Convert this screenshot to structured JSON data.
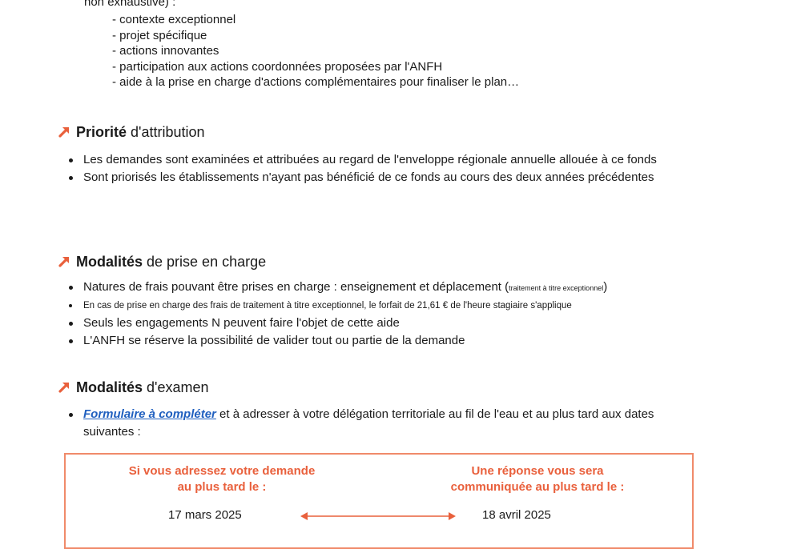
{
  "intro": {
    "tail_text": "non exhaustive) :",
    "items": [
      "- contexte exceptionnel",
      "- projet spécifique",
      "- actions innovantes",
      "- participation aux actions coordonnées proposées par l'ANFH",
      "- aide à la prise en charge d'actions complémentaires pour finaliser le plan…"
    ]
  },
  "sections": {
    "priorite": {
      "bold": "Priorité",
      "rest": " d'attribution",
      "bullets": [
        "Les demandes sont examinées et attribuées au regard de l'enveloppe régionale annuelle allouée à ce fonds",
        "Sont priorisés les établissements n'ayant pas bénéficié de ce fonds au cours des deux années précédentes"
      ]
    },
    "prise_en_charge": {
      "bold": "Modalités",
      "rest": " de prise en charge",
      "b1_main": "Natures de frais pouvant être prises en charge : enseignement et déplacement (",
      "b1_small": "traitement à titre exceptionnel",
      "b1_close": ")",
      "b2": "En cas de prise en charge des frais de traitement à titre exceptionnel, le forfait de 21,61 € de l'heure stagiaire s'applique",
      "b3": "Seuls les engagements N peuvent faire l'objet de cette aide",
      "b4": "L'ANFH se réserve la possibilité de valider tout ou partie de la demande"
    },
    "examen": {
      "bold": "Modalités",
      "rest": " d'examen",
      "link": "Formulaire à compléter",
      "after_link": " et à adresser à votre délégation territoriale au fil de l'eau et au plus tard aux dates suivantes :"
    }
  },
  "deadlines": {
    "left_header_1": "Si vous adressez votre demande",
    "left_header_2": "au plus tard le :",
    "right_header_1": "Une réponse vous sera",
    "right_header_2": "communiquée au plus tard le :",
    "rows": [
      {
        "submit": "17 mars 2025",
        "answer": "18 avril 2025"
      }
    ]
  },
  "colors": {
    "accent": "#e9603c",
    "box_border": "#f08a6a",
    "link": "#1f5fbf"
  }
}
